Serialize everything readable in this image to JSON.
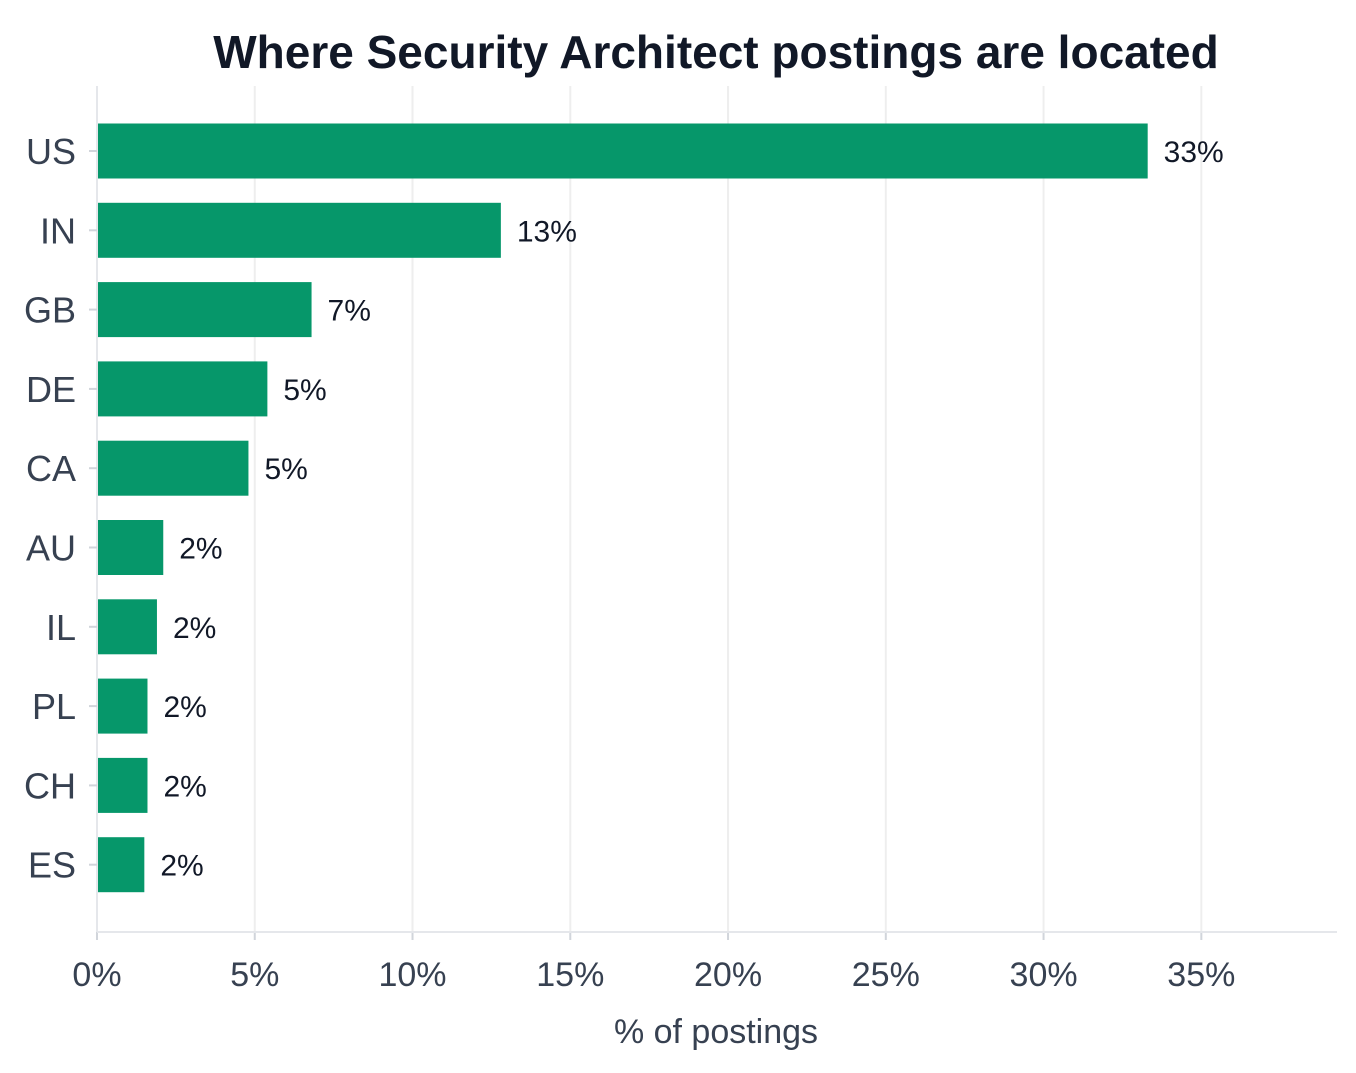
{
  "chart_data": {
    "type": "bar",
    "orientation": "horizontal",
    "title": "Where Security Architect postings are located",
    "xlabel": "% of postings",
    "ylabel": "",
    "categories": [
      "US",
      "IN",
      "GB",
      "DE",
      "CA",
      "AU",
      "IL",
      "PL",
      "CH",
      "ES"
    ],
    "values": [
      33.3,
      12.8,
      6.8,
      5.4,
      4.8,
      2.1,
      1.9,
      1.6,
      1.6,
      1.5
    ],
    "data_labels": [
      "33%",
      "13%",
      "7%",
      "5%",
      "5%",
      "2%",
      "2%",
      "2%",
      "2%",
      "2%"
    ],
    "xlim": [
      0,
      39.3
    ],
    "x_ticks": [
      0,
      5,
      10,
      15,
      20,
      25,
      30,
      35
    ],
    "x_tick_labels": [
      "0%",
      "5%",
      "10%",
      "15%",
      "20%",
      "25%",
      "30%",
      "35%"
    ],
    "grid": true,
    "bar_color": "#06976a",
    "grid_color": "#eeeeee",
    "axis_color": "#e5e7eb"
  }
}
